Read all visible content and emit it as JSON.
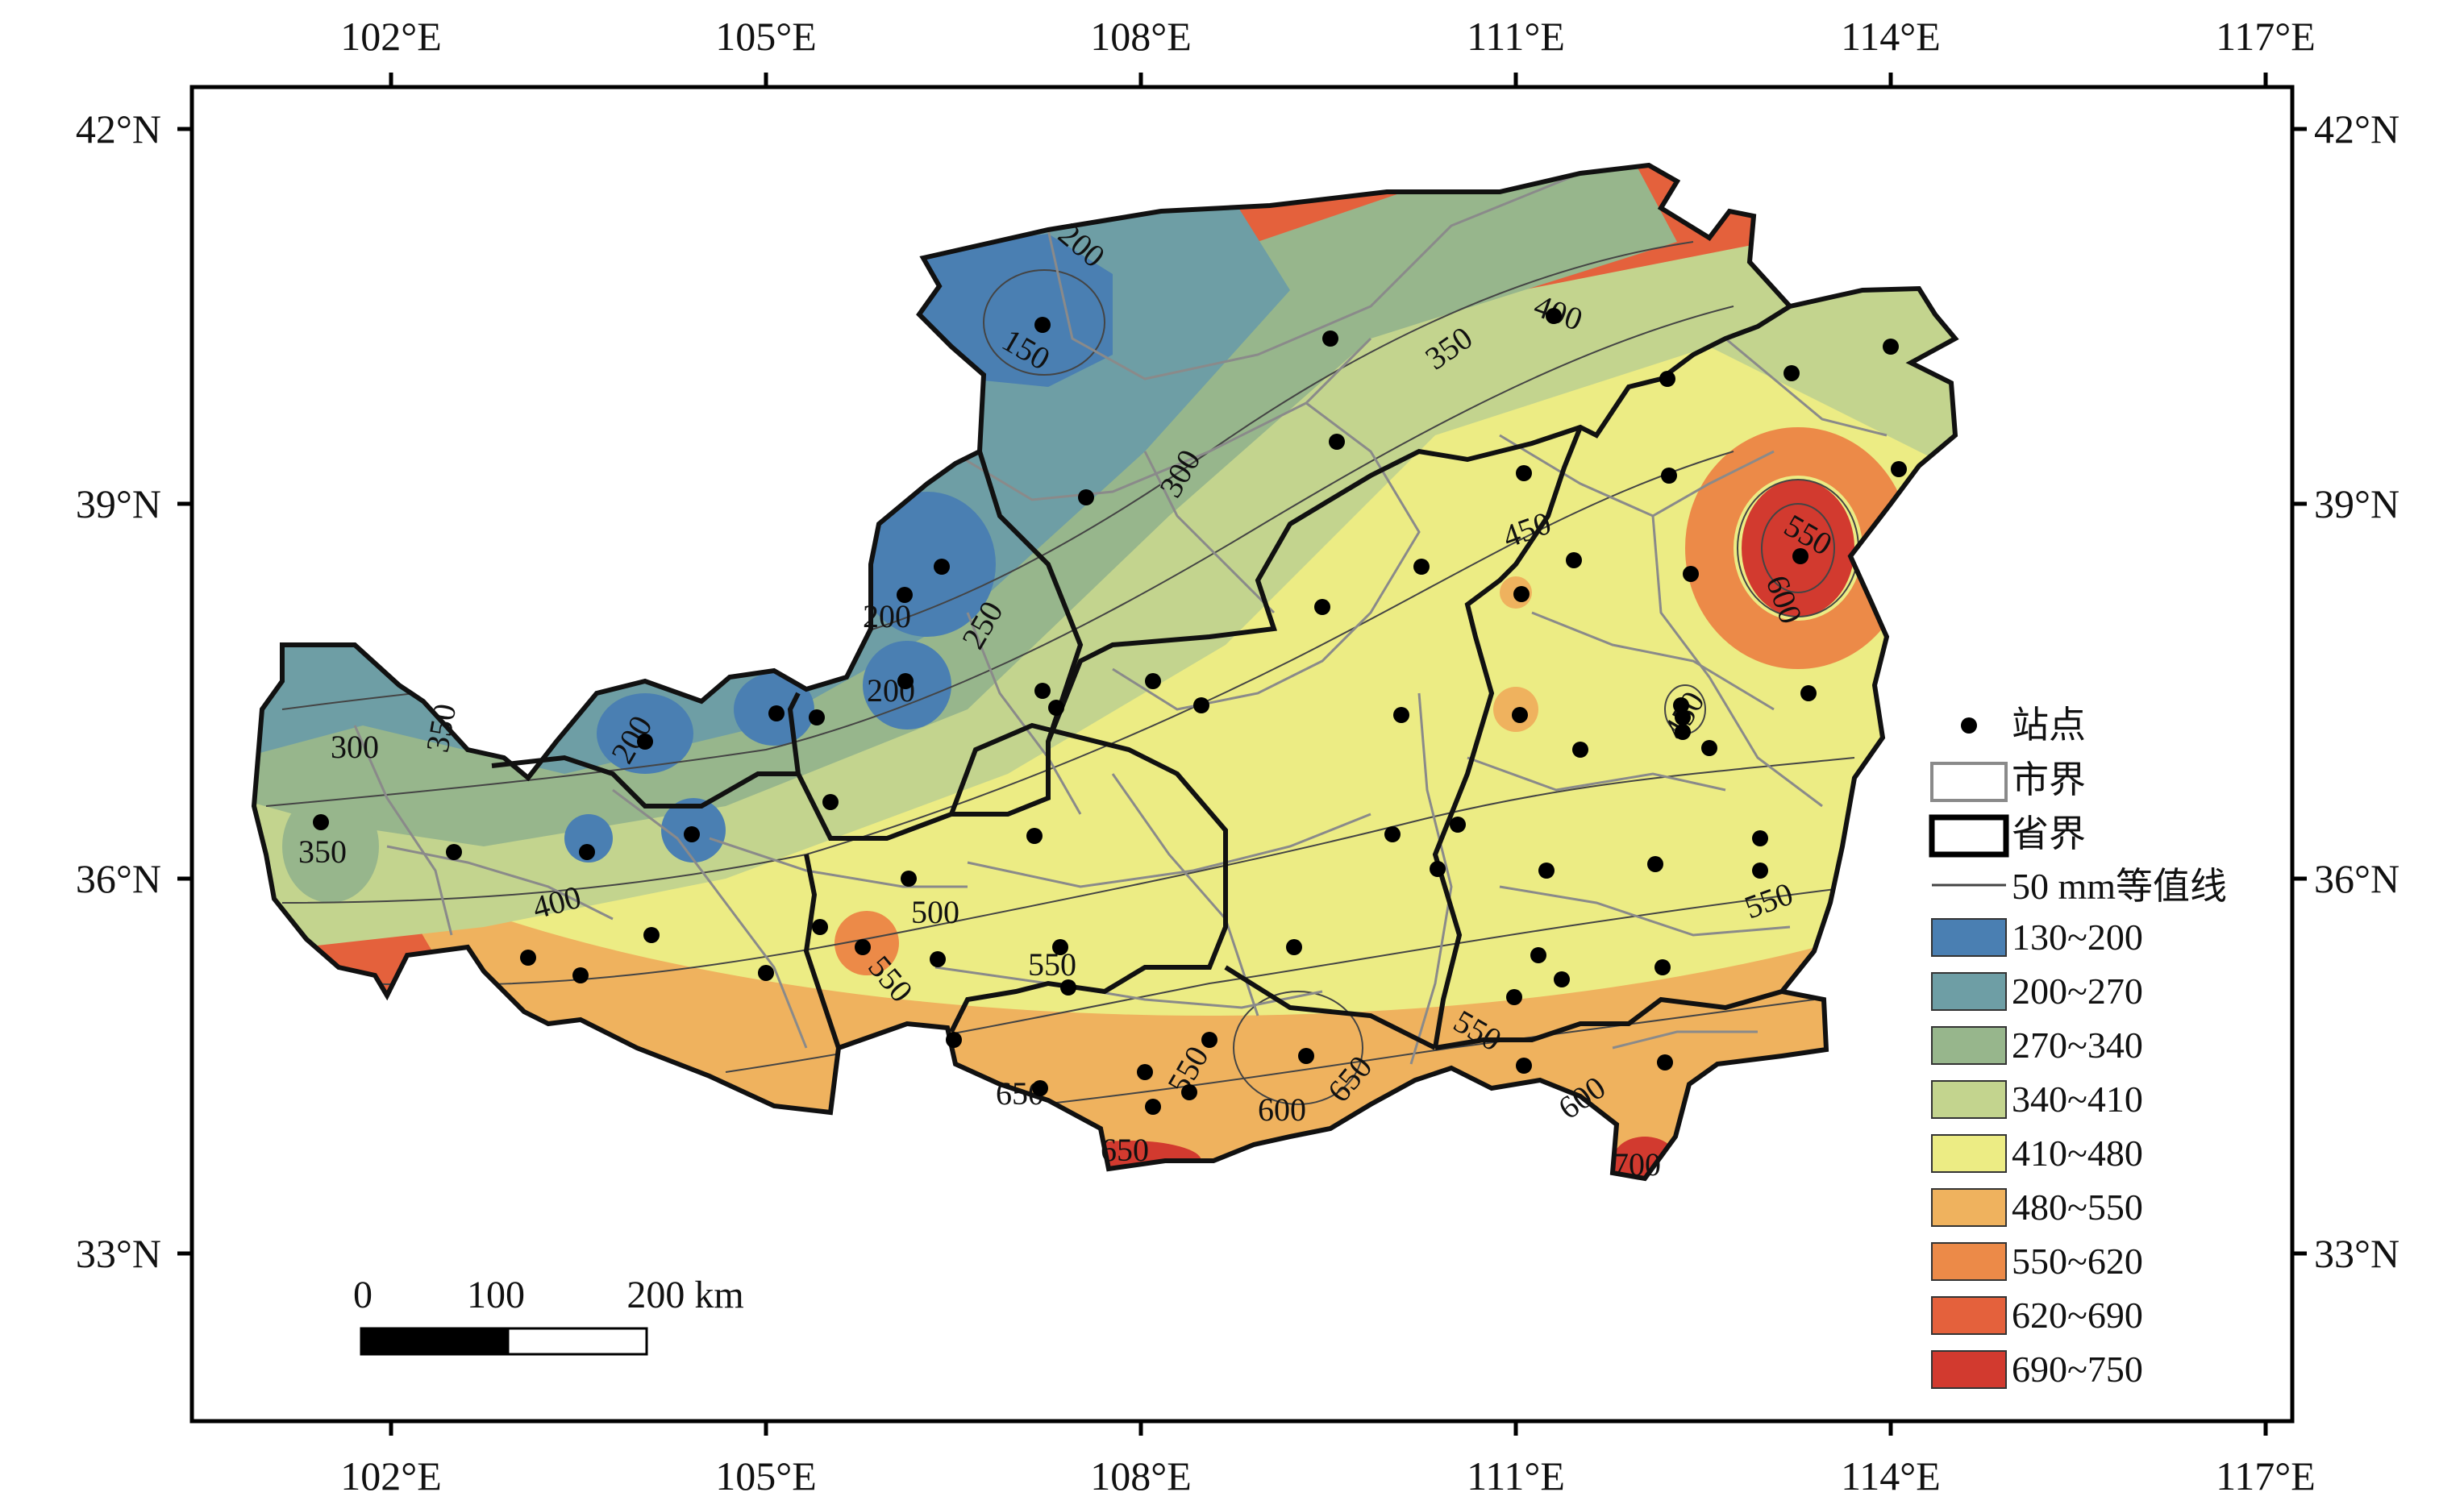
{
  "axes": {
    "top_lon": [
      "102°E",
      "105°E",
      "108°E",
      "111°E",
      "114°E",
      "117°E"
    ],
    "bottom_lon": [
      "102°E",
      "105°E",
      "108°E",
      "111°E",
      "114°E",
      "117°E"
    ],
    "left_lat": [
      "42°N",
      "39°N",
      "36°N",
      "33°N"
    ],
    "right_lat": [
      "42°N",
      "39°N",
      "36°N",
      "33°N"
    ]
  },
  "contour_labels": [
    "150",
    "200",
    "200",
    "200",
    "200",
    "250",
    "300",
    "300",
    "350",
    "350",
    "350",
    "400",
    "400",
    "450",
    "450",
    "500",
    "550",
    "550",
    "550",
    "550",
    "550",
    "550",
    "600",
    "600",
    "600",
    "650",
    "650",
    "650",
    "700"
  ],
  "legend": {
    "station": "站点",
    "city_border": "市界",
    "province_border": "省界",
    "contour": "50 mm等值线",
    "classes": [
      {
        "label": "130~200",
        "color": "#4a7fb2"
      },
      {
        "label": "200~270",
        "color": "#6e9ea5"
      },
      {
        "label": "270~340",
        "color": "#97b68c"
      },
      {
        "label": "340~410",
        "color": "#c3d48e"
      },
      {
        "label": "410~480",
        "color": "#ecec84"
      },
      {
        "label": "480~550",
        "color": "#efb25e"
      },
      {
        "label": "550~620",
        "color": "#ec8a48"
      },
      {
        "label": "620~690",
        "color": "#e4613c"
      },
      {
        "label": "690~750",
        "color": "#d23a2f"
      }
    ]
  },
  "scalebar": {
    "labels": [
      "0",
      "100",
      "200 km"
    ]
  }
}
